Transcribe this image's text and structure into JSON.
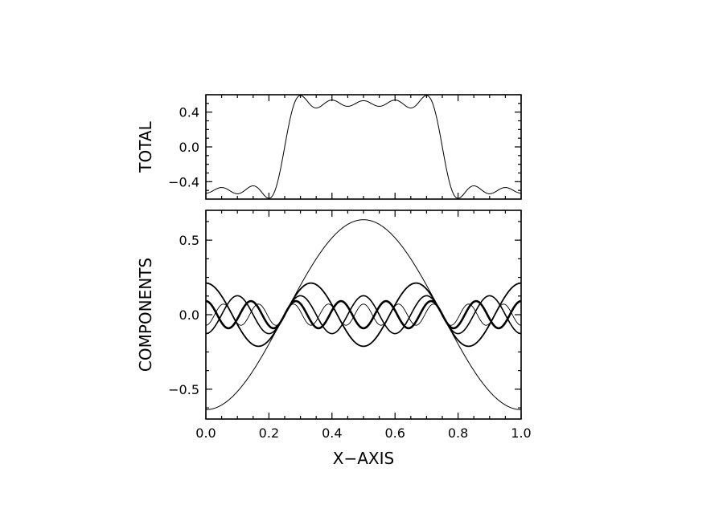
{
  "chart_data": [
    {
      "type": "line",
      "panel": "top",
      "xlabel": "",
      "ylabel": "TOTAL",
      "xlim": [
        0.0,
        1.0
      ],
      "ylim": [
        -0.6,
        0.6
      ],
      "yticks": [
        -0.4,
        0.0,
        0.4
      ],
      "yticklabels": [
        "−0.4",
        "0.0",
        "0.4"
      ],
      "xticks": [
        0.0,
        0.2,
        0.4,
        0.6,
        0.8,
        1.0
      ],
      "xticklabels": [
        "",
        "",
        "",
        "",
        "",
        ""
      ],
      "grid": false,
      "series": [
        {
          "stroke_width": 1.0,
          "sum_of_harmonics": [
            1,
            3,
            5,
            7,
            9
          ],
          "coef_scale": 0.6366,
          "x": [
            0.0,
            0.05,
            0.1,
            0.15,
            0.2,
            0.25,
            0.3,
            0.35,
            0.4,
            0.45,
            0.5,
            0.55,
            0.6,
            0.65,
            0.7,
            0.75,
            0.8,
            0.85,
            0.9,
            0.95,
            1.0
          ],
          "y": [
            -0.5,
            -0.53,
            -0.5,
            -0.47,
            -0.55,
            0.0,
            0.55,
            0.47,
            0.5,
            0.53,
            0.5,
            0.53,
            0.5,
            0.47,
            0.55,
            0.0,
            -0.55,
            -0.47,
            -0.5,
            -0.53,
            -0.5
          ]
        }
      ]
    },
    {
      "type": "line",
      "panel": "bottom",
      "xlabel": "X−AXIS",
      "ylabel": "COMPONENTS",
      "xlim": [
        0.0,
        1.0
      ],
      "ylim": [
        -0.7,
        0.7
      ],
      "yticks": [
        -0.5,
        0.0,
        0.5
      ],
      "yticklabels": [
        "−0.5",
        "0.0",
        "0.5"
      ],
      "xticks": [
        0.0,
        0.2,
        0.4,
        0.6,
        0.8,
        1.0
      ],
      "xticklabels": [
        "0.0",
        "0.2",
        "0.4",
        "0.6",
        "0.8",
        "1.0"
      ],
      "grid": false,
      "series": [
        {
          "harmonic": 1,
          "amplitude": 0.637,
          "sign": -1,
          "stroke_width": 1.0
        },
        {
          "harmonic": 3,
          "amplitude": 0.212,
          "sign": 1,
          "stroke_width": 1.8
        },
        {
          "harmonic": 5,
          "amplitude": 0.127,
          "sign": -1,
          "stroke_width": 1.6
        },
        {
          "harmonic": 7,
          "amplitude": 0.091,
          "sign": 1,
          "stroke_width": 2.6
        },
        {
          "harmonic": 9,
          "amplitude": 0.071,
          "sign": -1,
          "stroke_width": 0.9
        }
      ]
    }
  ]
}
